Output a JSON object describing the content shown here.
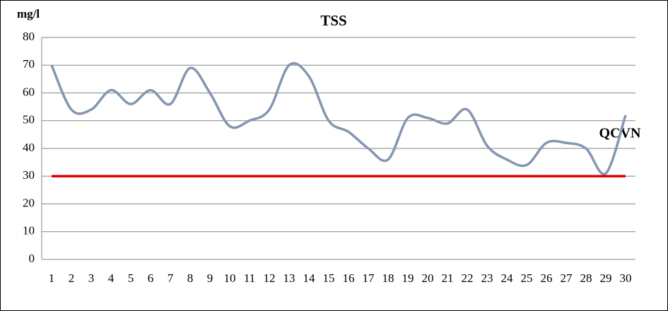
{
  "chart_data": {
    "type": "line",
    "title": "TSS",
    "y_label": "mg/l",
    "annotation": "QCVN",
    "categories": [
      "1",
      "2",
      "3",
      "4",
      "5",
      "6",
      "7",
      "8",
      "9",
      "10",
      "11",
      "12",
      "13",
      "14",
      "15",
      "16",
      "17",
      "18",
      "19",
      "20",
      "21",
      "22",
      "23",
      "24",
      "25",
      "26",
      "27",
      "28",
      "29",
      "30"
    ],
    "series": [
      {
        "color": "#8496b0",
        "smooth": true,
        "values": [
          70,
          54,
          54,
          61,
          56,
          61,
          56,
          69,
          60,
          48,
          50,
          54,
          70,
          66,
          50,
          46,
          40,
          36,
          51,
          51,
          49,
          54,
          41,
          36,
          34,
          42,
          42,
          40,
          31,
          52
        ]
      },
      {
        "color": "#e00000",
        "smooth": false,
        "values": [
          30,
          30,
          30,
          30,
          30,
          30,
          30,
          30,
          30,
          30,
          30,
          30,
          30,
          30,
          30,
          30,
          30,
          30,
          30,
          30,
          30,
          30,
          30,
          30,
          30,
          30,
          30,
          30,
          30,
          30
        ]
      }
    ],
    "ylim": [
      0,
      80
    ],
    "yticks": [
      0,
      10,
      20,
      30,
      40,
      50,
      60,
      70,
      80
    ],
    "grid": true
  }
}
